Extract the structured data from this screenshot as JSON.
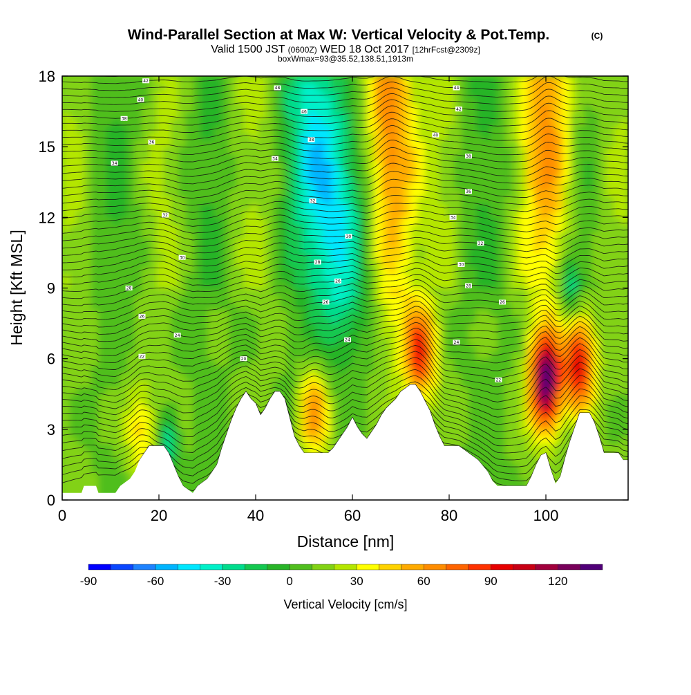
{
  "chart_data": {
    "type": "heatmap",
    "title": "Wind-Parallel Section at Max W: Vertical Velocity & Pot.Temp.",
    "title_mark": "(C)",
    "subtitle_prefix": "Valid 1500 JST",
    "subtitle_utc": "(0600Z)",
    "subtitle_date": "WED 18 Oct 2017",
    "subtitle_fcst": "[12hrFcst@2309z]",
    "subtitle2": "boxWmax=93@35.52,138.51,1913m",
    "xlabel": "Distance [nm]",
    "ylabel": "Height [Kft MSL]",
    "xlim": [
      0,
      117
    ],
    "ylim": [
      0,
      18
    ],
    "x_ticks": [
      "0",
      "20",
      "40",
      "60",
      "80",
      "100"
    ],
    "y_ticks": [
      "0",
      "3",
      "6",
      "9",
      "12",
      "15",
      "18"
    ],
    "colorbar": {
      "label": "Vertical Velocity [cm/s]",
      "range": [
        -90,
        140
      ],
      "step": 10,
      "tick_labels": [
        "-90",
        "-60",
        "-30",
        "0",
        "30",
        "60",
        "90",
        "120"
      ],
      "colors": [
        "#0000ff",
        "#0a46ff",
        "#1e82ff",
        "#00b4ff",
        "#00e6ff",
        "#00f0c8",
        "#00dc8c",
        "#14c850",
        "#28b428",
        "#50be1e",
        "#82d214",
        "#b4e600",
        "#ffff00",
        "#ffd200",
        "#ffaa00",
        "#ff8c00",
        "#ff6400",
        "#ff3200",
        "#e60000",
        "#c80014",
        "#a0003c",
        "#78005a",
        "#500078"
      ]
    },
    "terrain_kft": [
      [
        0,
        0.3
      ],
      [
        4,
        0.3
      ],
      [
        4.5,
        0.6
      ],
      [
        7,
        0.6
      ],
      [
        7.5,
        0.3
      ],
      [
        11,
        0.3
      ],
      [
        12,
        0.6
      ],
      [
        14,
        0.9
      ],
      [
        15,
        1.2
      ],
      [
        16,
        1.7
      ],
      [
        17,
        2.0
      ],
      [
        18,
        2.3
      ],
      [
        21,
        2.3
      ],
      [
        22,
        2.0
      ],
      [
        23,
        1.5
      ],
      [
        24,
        1.0
      ],
      [
        25,
        0.6
      ],
      [
        27,
        0.3
      ],
      [
        28,
        0.6
      ],
      [
        30,
        0.9
      ],
      [
        32,
        1.5
      ],
      [
        33,
        2.2
      ],
      [
        34,
        2.8
      ],
      [
        35,
        3.4
      ],
      [
        36,
        3.9
      ],
      [
        37,
        4.3
      ],
      [
        38,
        4.6
      ],
      [
        39,
        4.3
      ],
      [
        40,
        4.1
      ],
      [
        41,
        3.6
      ],
      [
        42,
        3.9
      ],
      [
        43,
        4.3
      ],
      [
        44,
        4.6
      ],
      [
        45,
        4.6
      ],
      [
        46,
        4.3
      ],
      [
        47,
        3.5
      ],
      [
        48,
        2.7
      ],
      [
        49,
        2.3
      ],
      [
        50,
        2.0
      ],
      [
        55,
        2.0
      ],
      [
        56,
        2.2
      ],
      [
        57,
        2.5
      ],
      [
        58,
        2.8
      ],
      [
        59,
        3.1
      ],
      [
        60,
        3.5
      ],
      [
        61,
        3.1
      ],
      [
        62,
        2.8
      ],
      [
        63,
        2.6
      ],
      [
        64,
        2.9
      ],
      [
        65,
        3.2
      ],
      [
        66,
        3.6
      ],
      [
        67,
        3.9
      ],
      [
        69,
        4.3
      ],
      [
        70,
        4.6
      ],
      [
        72,
        4.9
      ],
      [
        73,
        4.9
      ],
      [
        74,
        4.6
      ],
      [
        75,
        4.2
      ],
      [
        76,
        3.8
      ],
      [
        77,
        3.2
      ],
      [
        78,
        2.7
      ],
      [
        79,
        2.3
      ],
      [
        82,
        2.3
      ],
      [
        84,
        2.0
      ],
      [
        86,
        1.7
      ],
      [
        88,
        1.2
      ],
      [
        89,
        0.8
      ],
      [
        90,
        0.6
      ],
      [
        96,
        0.6
      ],
      [
        97,
        1.0
      ],
      [
        98,
        1.5
      ],
      [
        99,
        1.9
      ],
      [
        100,
        2.0
      ],
      [
        101,
        1.3
      ],
      [
        102,
        0.7
      ],
      [
        103,
        1.0
      ],
      [
        104,
        1.8
      ],
      [
        105,
        2.5
      ],
      [
        106,
        3.1
      ],
      [
        107,
        3.7
      ],
      [
        109,
        3.7
      ],
      [
        110,
        3.3
      ],
      [
        111,
        2.7
      ],
      [
        112,
        2.0
      ],
      [
        115,
        2.0
      ],
      [
        116,
        1.7
      ],
      [
        117,
        1.7
      ]
    ],
    "updraft_cores": [
      {
        "x": 100,
        "y": 5.0,
        "max_w": 125
      },
      {
        "x": 107,
        "y": 5.8,
        "max_w": 95
      },
      {
        "x": 74,
        "y": 6.3,
        "max_w": 75
      },
      {
        "x": 68,
        "y": 15.0,
        "max_w": 70
      },
      {
        "x": 101,
        "y": 16.5,
        "max_w": 50
      },
      {
        "x": 52,
        "y": 3.8,
        "max_w": 55
      },
      {
        "x": 16,
        "y": 3.0,
        "max_w": 35
      }
    ],
    "downdraft_cores": [
      {
        "x": 58,
        "y": 11.0,
        "min_w": -45
      },
      {
        "x": 53,
        "y": 16.0,
        "min_w": -30
      },
      {
        "x": 105,
        "y": 9.0,
        "min_w": -30
      },
      {
        "x": 22,
        "y": 2.5,
        "min_w": -35
      }
    ],
    "contour_labels": [
      {
        "text": "42",
        "x": 17.3,
        "y": 17.8
      },
      {
        "text": "40",
        "x": 16.2,
        "y": 17.0
      },
      {
        "text": "38",
        "x": 12.8,
        "y": 16.2
      },
      {
        "text": "36",
        "x": 18.5,
        "y": 15.2
      },
      {
        "text": "34",
        "x": 10.8,
        "y": 14.3
      },
      {
        "text": "32",
        "x": 21.3,
        "y": 12.1
      },
      {
        "text": "30",
        "x": 24.8,
        "y": 10.3
      },
      {
        "text": "28",
        "x": 13.8,
        "y": 9.0
      },
      {
        "text": "26",
        "x": 16.5,
        "y": 7.8
      },
      {
        "text": "24",
        "x": 23.8,
        "y": 7.0
      },
      {
        "text": "22",
        "x": 16.5,
        "y": 6.1
      },
      {
        "text": "20",
        "x": 37.5,
        "y": 6.0
      },
      {
        "text": "48",
        "x": 44.5,
        "y": 17.5
      },
      {
        "text": "46",
        "x": 50.0,
        "y": 16.5
      },
      {
        "text": "38",
        "x": 51.5,
        "y": 15.3
      },
      {
        "text": "34",
        "x": 44.0,
        "y": 14.5
      },
      {
        "text": "32",
        "x": 51.8,
        "y": 12.7
      },
      {
        "text": "30",
        "x": 59.2,
        "y": 11.2
      },
      {
        "text": "28",
        "x": 52.8,
        "y": 10.1
      },
      {
        "text": "26",
        "x": 57.0,
        "y": 9.3
      },
      {
        "text": "26",
        "x": 54.5,
        "y": 8.4
      },
      {
        "text": "24",
        "x": 59.0,
        "y": 6.8
      },
      {
        "text": "44",
        "x": 81.5,
        "y": 17.5
      },
      {
        "text": "42",
        "x": 82.0,
        "y": 16.6
      },
      {
        "text": "40",
        "x": 77.2,
        "y": 15.5
      },
      {
        "text": "38",
        "x": 84.0,
        "y": 14.6
      },
      {
        "text": "36",
        "x": 84.0,
        "y": 13.1
      },
      {
        "text": "34",
        "x": 80.8,
        "y": 12.0
      },
      {
        "text": "32",
        "x": 86.5,
        "y": 10.9
      },
      {
        "text": "30",
        "x": 82.5,
        "y": 10.0
      },
      {
        "text": "28",
        "x": 84.0,
        "y": 9.1
      },
      {
        "text": "26",
        "x": 91.0,
        "y": 8.4
      },
      {
        "text": "24",
        "x": 81.5,
        "y": 6.7
      },
      {
        "text": "22",
        "x": 90.2,
        "y": 5.1
      }
    ]
  }
}
